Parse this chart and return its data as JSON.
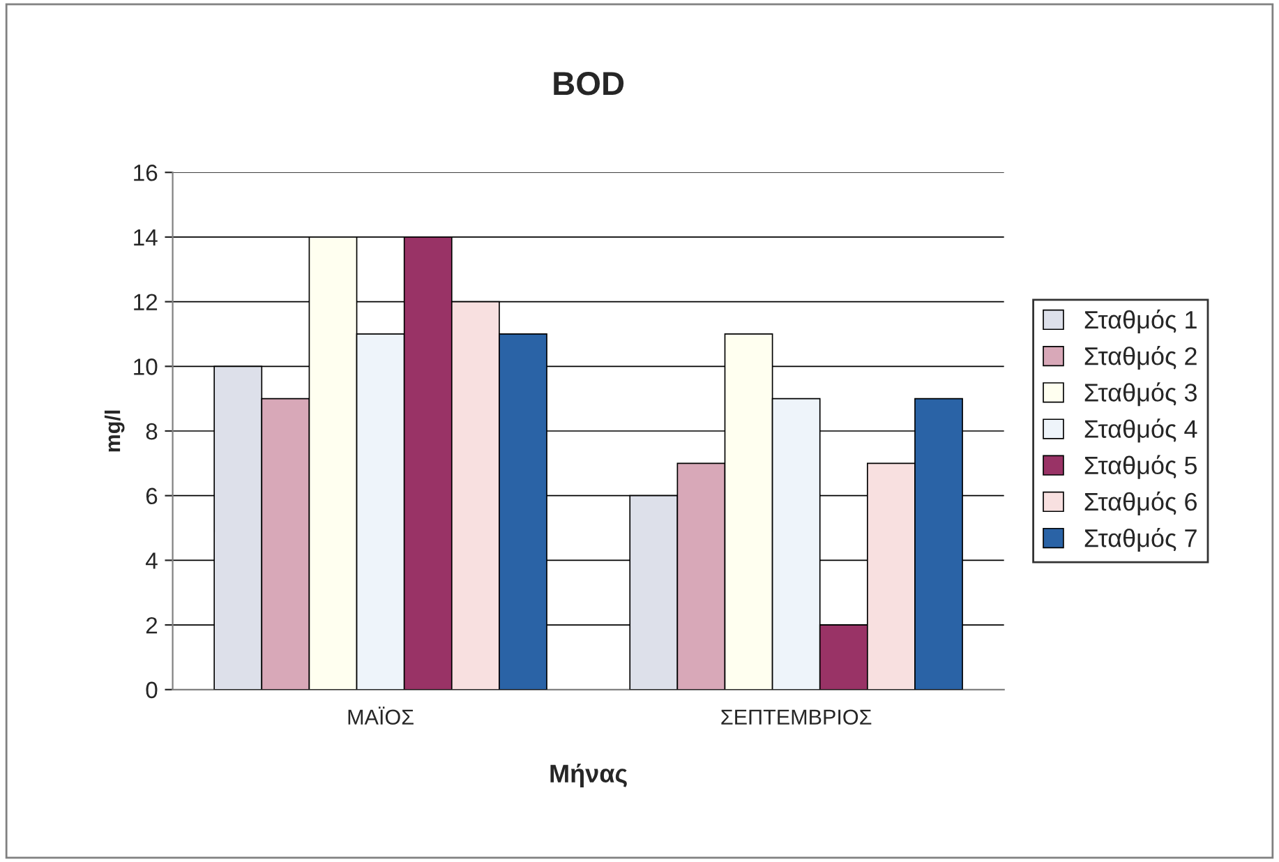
{
  "chart_data": {
    "type": "bar",
    "title": "BOD",
    "xlabel": "Μήνας",
    "ylabel": "mg/l",
    "categories": [
      "ΜΑΪΟΣ",
      "ΣΕΠΤΕΜΒΡΙΟΣ"
    ],
    "series": [
      {
        "name": "Σταθμός 1",
        "color": "#dde0ea",
        "values": [
          10,
          6
        ]
      },
      {
        "name": "Σταθμός 2",
        "color": "#d8a8b8",
        "values": [
          9,
          7
        ]
      },
      {
        "name": "Σταθμός 3",
        "color": "#fffff0",
        "values": [
          14,
          11
        ]
      },
      {
        "name": "Σταθμός 4",
        "color": "#eef4fa",
        "values": [
          11,
          9
        ]
      },
      {
        "name": "Σταθμός 5",
        "color": "#993366",
        "values": [
          14,
          2
        ]
      },
      {
        "name": "Σταθμός 6",
        "color": "#f8e0e0",
        "values": [
          12,
          7
        ]
      },
      {
        "name": "Σταθμός 7",
        "color": "#2a63a6",
        "values": [
          11,
          9
        ]
      }
    ],
    "ylim": [
      0,
      16
    ],
    "yticks": [
      0,
      2,
      4,
      6,
      8,
      10,
      12,
      14,
      16
    ],
    "grid": "y",
    "legend": "right"
  }
}
